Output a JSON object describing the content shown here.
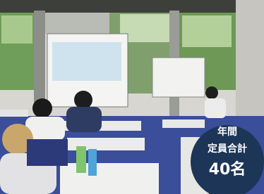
{
  "badge": {
    "line1": "年間",
    "line2": "定員合計",
    "line3": "40名"
  }
}
